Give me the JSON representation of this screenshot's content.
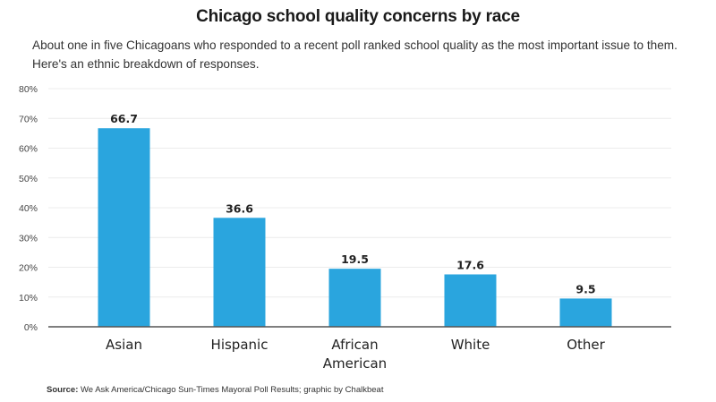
{
  "chart_data": {
    "type": "bar",
    "title": "Chicago school quality concerns by race",
    "subtitle": "About one in five Chicagoans who responded to a recent poll ranked school quality as the most important issue to them. Here's an ethnic breakdown of responses.",
    "categories": [
      [
        "Asian"
      ],
      [
        "Hispanic"
      ],
      [
        "African",
        "American"
      ],
      [
        "White"
      ],
      [
        "Other"
      ]
    ],
    "values": [
      66.7,
      36.6,
      19.5,
      17.6,
      9.5
    ],
    "data_labels": [
      "66.7",
      "36.6",
      "19.5",
      "17.6",
      "9.5"
    ],
    "xlabel": "",
    "ylabel": "",
    "ylim": [
      0,
      80
    ],
    "yticks": [
      0,
      10,
      20,
      30,
      40,
      50,
      60,
      70,
      80
    ],
    "ytick_labels": [
      "0%",
      "10%",
      "20%",
      "30%",
      "40%",
      "50%",
      "60%",
      "70%",
      "80%"
    ],
    "grid": true,
    "bar_color": "#2aa5de",
    "legend": "none"
  },
  "source": {
    "label": "Source:",
    "text": " We Ask America/Chicago Sun-Times Mayoral Poll Results; graphic by Chalkbeat"
  }
}
